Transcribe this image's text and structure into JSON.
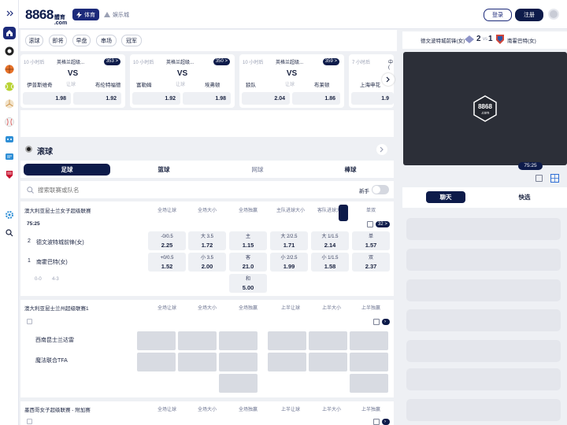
{
  "header": {
    "logo_main": "8868",
    "logo_sub1": "體育",
    "logo_sub2": ".com",
    "nav": [
      {
        "label": "体育"
      },
      {
        "label": "娱乐城"
      }
    ],
    "login": "登录",
    "register": "注册"
  },
  "sidebar": {
    "items": [
      "collapse-icon",
      "home-icon",
      "soccer-icon",
      "basketball-icon",
      "tennis-icon",
      "volleyball-icon",
      "baseball-icon",
      "esports-icon",
      "chat-icon",
      "club-icon",
      "settings-icon",
      "search-icon"
    ]
  },
  "filters": [
    {
      "label": "滚球"
    },
    {
      "label": "即将"
    },
    {
      "label": "早盘"
    },
    {
      "label": "串场"
    },
    {
      "label": "冠军"
    }
  ],
  "featured": [
    {
      "time": "10 小时后",
      "league": "英格兰超级...",
      "count": "353 >",
      "vs": "VS",
      "home": "伊普斯维奇",
      "mid": "让球",
      "away": "布伦特福德",
      "odd1": "1.98",
      "odd2": "1.92"
    },
    {
      "time": "10 小时后",
      "league": "英格兰超级...",
      "count": "350 >",
      "vs": "VS",
      "home": "富勒姆",
      "mid": "让球",
      "away": "埃弗顿",
      "odd1": "1.92",
      "odd2": "1.98"
    },
    {
      "time": "10 小时后",
      "league": "英格兰超级...",
      "count": "359 >",
      "vs": "VS",
      "home": "狼队",
      "mid": "让球",
      "away": "布莱顿",
      "odd1": "2.04",
      "odd2": "1.86"
    },
    {
      "time": "7 小时后",
      "league": "中(",
      "count": "",
      "vs": "",
      "home": "上海申花",
      "mid": "",
      "away": "",
      "odd1": "",
      "odd2": "1.9"
    }
  ],
  "live": {
    "title": "滚球",
    "sport_tabs": [
      {
        "label": "足球"
      },
      {
        "label": "篮球"
      },
      {
        "label": "网球"
      },
      {
        "label": "棒球"
      }
    ],
    "search_placeholder": "搜索联赛或队名",
    "newbie": "新手"
  },
  "leagues": [
    {
      "name": "澳大利亚昆士兰女子超级联赛",
      "cols": [
        "全场让球",
        "全场大小",
        "全场独赢",
        "主队进球大小",
        "客队进球大小",
        "单双"
      ],
      "status": "75:25",
      "more": "32 >",
      "teams": [
        {
          "num": "2",
          "name": "德文波特城前锋(女)"
        },
        {
          "num": "1",
          "name": "南霍巴特(女)"
        }
      ],
      "half": "0-0",
      "corner": "4-3",
      "odds": [
        [
          {
            "h": "-0/0.5",
            "v": "2.25"
          },
          {
            "h": "大 3.5",
            "v": "1.72"
          },
          {
            "h": "主",
            "v": "1.15"
          },
          {
            "h": "大 2/2.5",
            "v": "1.71"
          },
          {
            "h": "大 1/1.5",
            "v": "2.14"
          },
          {
            "h": "单",
            "v": "1.57"
          }
        ],
        [
          {
            "h": "+0/0.5",
            "v": "1.52"
          },
          {
            "h": "小 3.5",
            "v": "2.00"
          },
          {
            "h": "客",
            "v": "21.0"
          },
          {
            "h": "小 2/2.5",
            "v": "1.99"
          },
          {
            "h": "小 1/1.5",
            "v": "1.58"
          },
          {
            "h": "双",
            "v": "2.37"
          }
        ]
      ],
      "draw": {
        "h": "和",
        "v": "5.00"
      }
    },
    {
      "name": "澳大利亚昆士兰州超级联赛1",
      "cols": [
        "全场让球",
        "全场大小",
        "全场独赢",
        "上半让球",
        "上半大小",
        "上半独赢"
      ],
      "teams": [
        {
          "name": "西南昆士兰达雷"
        },
        {
          "name": "魔法联合TFA"
        }
      ]
    },
    {
      "name": "墨西哥女子超级联赛 - 附加赛",
      "cols": [
        "全场让球",
        "全场大小",
        "全场独赢",
        "上半让球",
        "上半大小",
        "上半独赢"
      ]
    }
  ],
  "right": {
    "home": "德文波特城前锋(女)",
    "score_home": "2",
    "vs": "vs",
    "score_away": "1",
    "away": "南霍巴特(女)",
    "video_logo": "8868",
    "video_logo_sub": ".com",
    "time": "75:25",
    "tabs": [
      {
        "label": "聊天"
      },
      {
        "label": "快选"
      }
    ]
  },
  "colors": {
    "navy": "#0d1b4a",
    "accent": "#1c2a7a",
    "bg": "#eef0f4"
  }
}
